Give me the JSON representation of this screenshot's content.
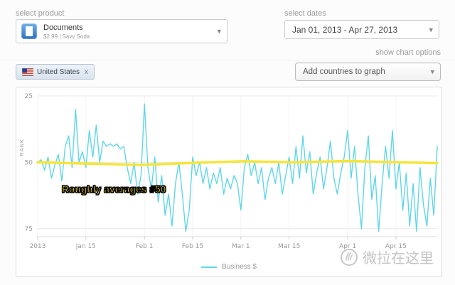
{
  "icons": {
    "caret": "▾",
    "close": "x"
  },
  "header": {
    "select_product_label": "select product",
    "select_dates_label": "select dates",
    "product": {
      "name": "Documents",
      "meta": "$2.99 | Savv Soda"
    },
    "date_range": "Jan 01, 2013 - Apr 27, 2013",
    "show_chart_options": "show chart options"
  },
  "filters": {
    "country_chip": {
      "label": "United States"
    },
    "add_countries_placeholder": "Add countries to graph"
  },
  "chart": {
    "annotation": "Roughly averages #50"
  },
  "watermark": {
    "text": "微拉在这里"
  },
  "chart_data": {
    "type": "line",
    "title": "",
    "xlabel": "",
    "ylabel": "RANK",
    "y_inverted": true,
    "ylim": [
      25,
      75
    ],
    "plot_ylim": [
      25,
      78
    ],
    "y_ticks": [
      25,
      50,
      75
    ],
    "x_range_days": [
      0,
      116
    ],
    "x_ticks": [
      {
        "day": 0,
        "label": "2013"
      },
      {
        "day": 14,
        "label": "Jan 15"
      },
      {
        "day": 31,
        "label": "Feb 1"
      },
      {
        "day": 45,
        "label": "Feb 15"
      },
      {
        "day": 59,
        "label": "Mar 1"
      },
      {
        "day": 73,
        "label": "Mar 15"
      },
      {
        "day": 90,
        "label": "Apr 1"
      },
      {
        "day": 104,
        "label": "Apr 15"
      }
    ],
    "grid": true,
    "legend_position": "bottom",
    "series": [
      {
        "name": "Business $",
        "color": "#5fd6e8",
        "width": 1.4,
        "values": [
          50,
          49,
          53,
          48,
          56,
          51,
          47,
          57,
          44,
          40,
          52,
          30,
          50,
          46,
          52,
          38,
          48,
          36,
          50,
          42,
          44,
          43,
          44,
          43,
          45,
          44,
          52,
          58,
          50,
          62,
          55,
          28,
          52,
          60,
          48,
          65,
          55,
          70,
          62,
          74,
          58,
          50,
          62,
          76,
          68,
          48,
          55,
          50,
          58,
          52,
          60,
          54,
          58,
          52,
          62,
          56,
          60,
          55,
          58,
          68,
          52,
          47,
          55,
          50,
          58,
          52,
          64,
          56,
          52,
          58,
          50,
          62,
          55,
          48,
          58,
          44,
          56,
          40,
          54,
          46,
          62,
          54,
          48,
          60,
          52,
          42,
          56,
          62,
          54,
          48,
          38,
          56,
          44,
          62,
          75,
          52,
          40,
          64,
          55,
          76,
          58,
          44,
          56,
          38,
          60,
          50,
          68,
          54,
          74,
          58,
          76,
          52,
          66,
          74,
          56,
          70,
          44
        ]
      },
      {
        "name": "Rough average",
        "color": "#f5e53a",
        "width": 3.5,
        "x": [
          0,
          15,
          30,
          45,
          60,
          75,
          90,
          105,
          116
        ],
        "values": [
          50,
          50.5,
          51,
          50.2,
          49.6,
          50,
          49.5,
          50,
          50.3
        ]
      }
    ]
  }
}
